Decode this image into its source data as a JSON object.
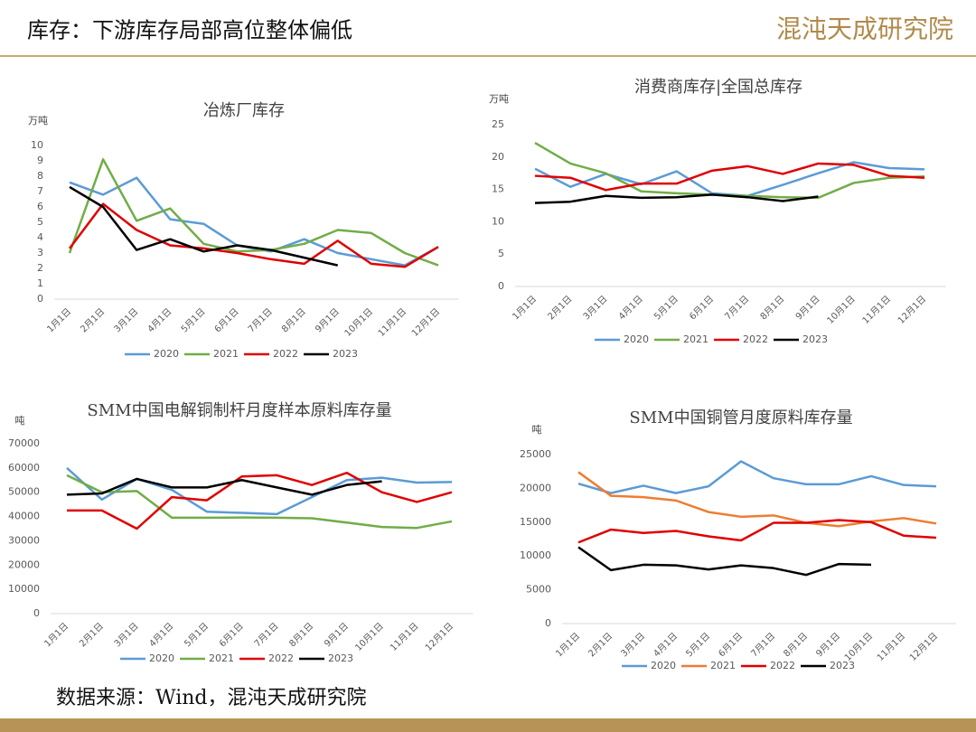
{
  "header": {
    "title": "库存：下游库存局部高位整体偏低",
    "logo": "混沌天成研究院"
  },
  "source": "数据来源：Wind，混沌天成研究院",
  "chart_data": [
    {
      "type": "line",
      "title": "冶炼厂库存",
      "y_unit": "万吨",
      "categories": [
        "1月1日",
        "2月1日",
        "3月1日",
        "4月1日",
        "5月1日",
        "6月1日",
        "7月1日",
        "8月1日",
        "9月1日",
        "10月1日",
        "11月1日",
        "12月1日"
      ],
      "ylim": [
        0,
        10
      ],
      "yticks": [
        0,
        1,
        2,
        3,
        4,
        5,
        6,
        7,
        8,
        9,
        10
      ],
      "grid": false,
      "series": [
        {
          "name": "2020",
          "color": "#5b9bd5",
          "values": [
            7.6,
            6.8,
            7.9,
            5.2,
            4.9,
            3.5,
            3.1,
            3.9,
            3.0,
            2.6,
            2.2,
            3.4
          ]
        },
        {
          "name": "2021",
          "color": "#70ad47",
          "values": [
            3.0,
            9.1,
            5.1,
            5.9,
            3.6,
            3.1,
            3.2,
            3.6,
            4.5,
            4.3,
            3.0,
            2.2
          ]
        },
        {
          "name": "2022",
          "color": "#e00000",
          "values": [
            3.3,
            6.2,
            4.5,
            3.5,
            3.3,
            3.0,
            2.6,
            2.3,
            3.8,
            2.3,
            2.1,
            3.4
          ]
        },
        {
          "name": "2023",
          "color": "#000000",
          "values": [
            7.3,
            6.0,
            3.2,
            3.9,
            3.1,
            3.5,
            3.2,
            2.7,
            2.2,
            null,
            null,
            null
          ]
        }
      ]
    },
    {
      "type": "line",
      "title": "消费商库存|全国总库存",
      "y_unit": "万吨",
      "categories": [
        "1月1日",
        "2月1日",
        "3月1日",
        "4月1日",
        "5月1日",
        "6月1日",
        "7月1日",
        "8月1日",
        "9月1日",
        "10月1日",
        "11月1日",
        "12月1日"
      ],
      "ylim": [
        0,
        25
      ],
      "yticks": [
        0,
        5,
        10,
        15,
        20,
        25
      ],
      "grid": false,
      "series": [
        {
          "name": "2020",
          "color": "#5b9bd5",
          "values": [
            18.2,
            15.4,
            17.4,
            15.8,
            17.8,
            14.4,
            14.0,
            15.7,
            17.5,
            19.2,
            18.3,
            18.1
          ]
        },
        {
          "name": "2021",
          "color": "#70ad47",
          "values": [
            22.2,
            19.0,
            17.5,
            14.7,
            14.4,
            14.2,
            14.0,
            13.8,
            13.7,
            16.0,
            16.8,
            17.0
          ]
        },
        {
          "name": "2022",
          "color": "#e00000",
          "values": [
            17.1,
            16.8,
            14.9,
            15.9,
            15.9,
            17.9,
            18.6,
            17.4,
            19.0,
            18.8,
            17.1,
            16.8
          ]
        },
        {
          "name": "2023",
          "color": "#000000",
          "values": [
            12.9,
            13.1,
            14.0,
            13.7,
            13.8,
            14.2,
            13.8,
            13.2,
            13.9,
            null,
            null,
            null
          ]
        }
      ]
    },
    {
      "type": "line",
      "title": "SMM中国电解铜制杆月度样本原料库存量",
      "y_unit": "吨",
      "categories": [
        "1月1日",
        "2月1日",
        "3月1日",
        "4月1日",
        "5月1日",
        "6月1日",
        "7月1日",
        "8月1日",
        "9月1日",
        "10月1日",
        "11月1日",
        "12月1日"
      ],
      "ylim": [
        0,
        70000
      ],
      "yticks": [
        0,
        10000,
        20000,
        30000,
        40000,
        50000,
        60000,
        70000
      ],
      "grid": false,
      "series": [
        {
          "name": "2020",
          "color": "#5b9bd5",
          "values": [
            60000,
            47000,
            55500,
            51000,
            42000,
            41500,
            41000,
            48000,
            55000,
            56000,
            54000,
            54200
          ]
        },
        {
          "name": "2021",
          "color": "#70ad47",
          "values": [
            57000,
            50000,
            50500,
            39500,
            39500,
            39600,
            39500,
            39300,
            37500,
            35700,
            35300,
            38000
          ]
        },
        {
          "name": "2022",
          "color": "#e00000",
          "values": [
            42500,
            42500,
            35000,
            48000,
            46700,
            56500,
            57000,
            53000,
            58000,
            50000,
            46000,
            50000
          ]
        },
        {
          "name": "2023",
          "color": "#000000",
          "values": [
            49000,
            49500,
            55500,
            52000,
            52000,
            55000,
            52000,
            49000,
            53000,
            54500,
            null,
            null
          ]
        }
      ]
    },
    {
      "type": "line",
      "title": "SMM中国铜管月度原料库存量",
      "y_unit": "吨",
      "categories": [
        "1月1日",
        "2月1日",
        "3月1日",
        "4月1日",
        "5月1日",
        "6月1日",
        "7月1日",
        "8月1日",
        "9月1日",
        "10月1日",
        "11月1日",
        "12月1日"
      ],
      "ylim": [
        0,
        25000
      ],
      "yticks": [
        0,
        5000,
        10000,
        15000,
        20000,
        25000
      ],
      "grid": false,
      "series": [
        {
          "name": "2020",
          "color": "#5b9bd5",
          "values": [
            20700,
            19300,
            20400,
            19300,
            20300,
            24000,
            21500,
            20600,
            20600,
            21800,
            20500,
            20300
          ]
        },
        {
          "name": "2021",
          "color": "#ed7d31",
          "values": [
            22400,
            18900,
            18700,
            18200,
            16500,
            15800,
            16000,
            14900,
            14400,
            15100,
            15600,
            14800
          ]
        },
        {
          "name": "2022",
          "color": "#e00000",
          "values": [
            12000,
            13900,
            13400,
            13700,
            12900,
            12300,
            14900,
            14900,
            15300,
            15000,
            13000,
            12700
          ]
        },
        {
          "name": "2023",
          "color": "#000000",
          "values": [
            11300,
            7900,
            8700,
            8600,
            8000,
            8600,
            8200,
            7200,
            8800,
            8700,
            null,
            null
          ]
        }
      ]
    }
  ]
}
